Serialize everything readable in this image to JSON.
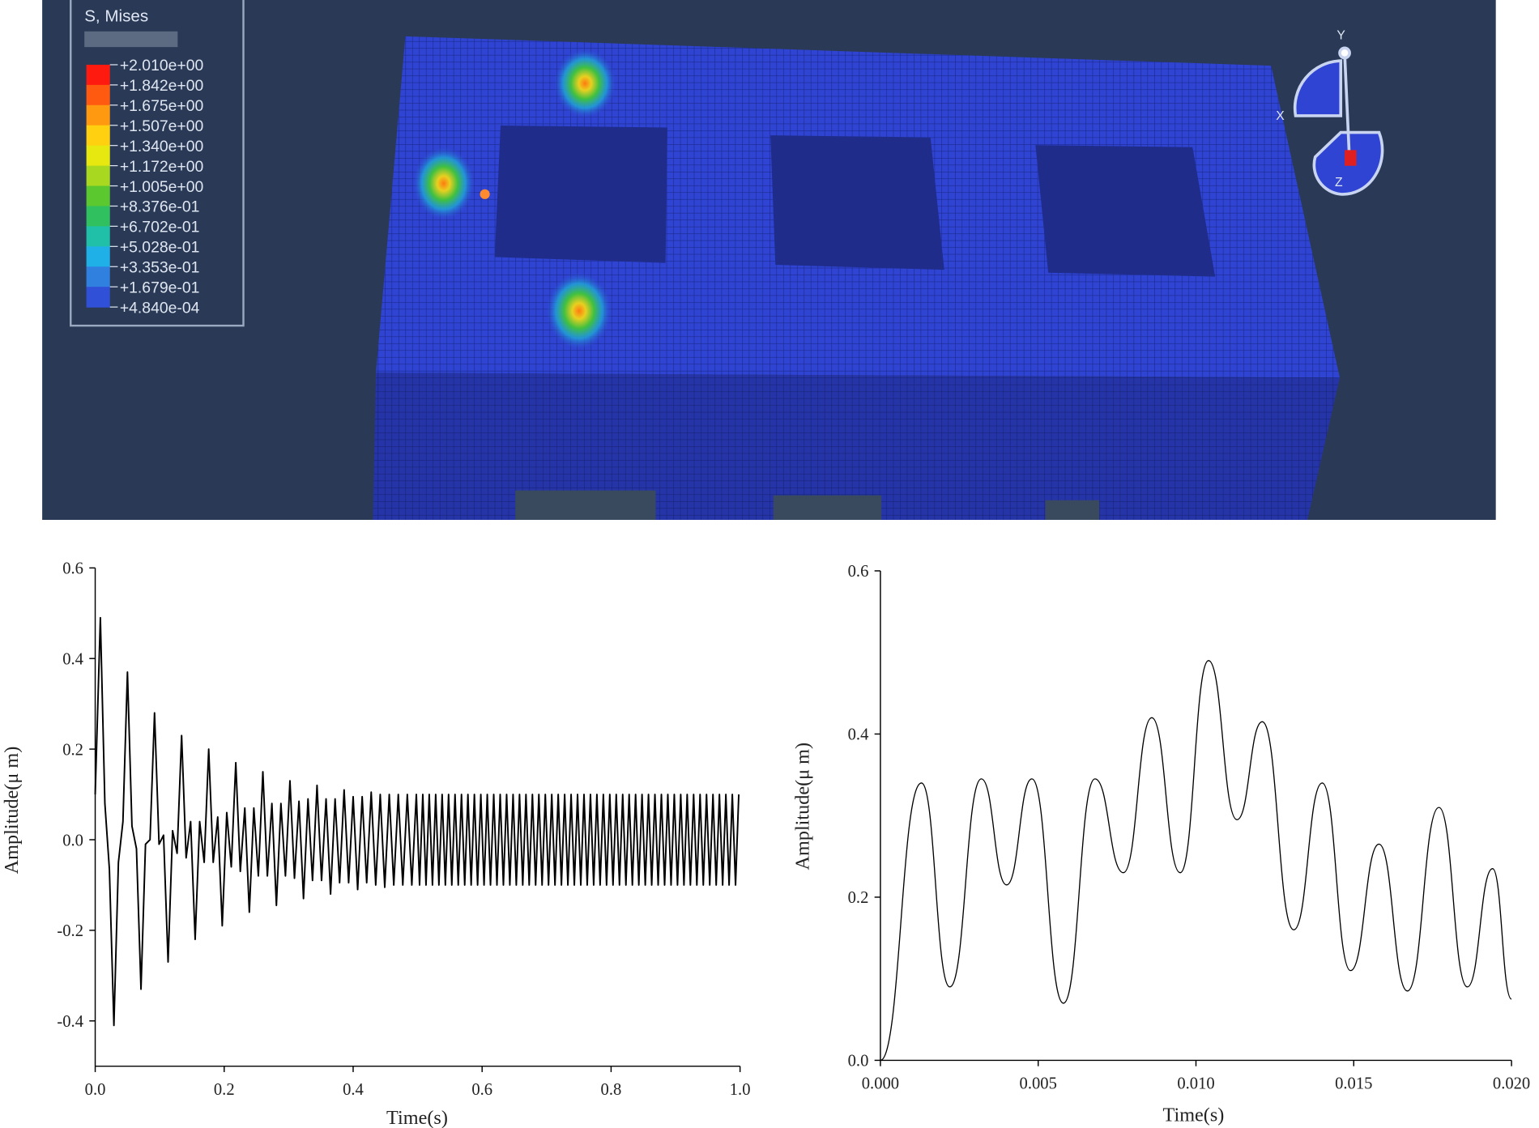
{
  "fea_view": {
    "title": "S, Mises",
    "legend_labels": [
      "+2.010e+00",
      "+1.842e+00",
      "+1.675e+00",
      "+1.507e+00",
      "+1.340e+00",
      "+1.172e+00",
      "+1.005e+00",
      "+8.376e-01",
      "+6.702e-01",
      "+5.028e-01",
      "+3.353e-01",
      "+1.679e-01",
      "+4.840e-04"
    ],
    "legend_colors": [
      "#ff1a10",
      "#ff5a10",
      "#ff9a10",
      "#ffd010",
      "#e6e810",
      "#a8d820",
      "#5cc830",
      "#30c060",
      "#20c0a8",
      "#20b0e8",
      "#3080e0",
      "#3050d8"
    ],
    "triad_labels": [
      "Y",
      "X",
      "Z"
    ]
  },
  "chart_data": [
    {
      "type": "line",
      "color": "#000000",
      "xlabel": "Time(s)",
      "ylabel": "Amplitude(μ m)",
      "xlim": [
        0,
        1
      ],
      "ylim": [
        -0.5,
        0.6
      ],
      "xticks": [
        {
          "value": 0,
          "label": "0.0"
        },
        0.2,
        0.4,
        0.6,
        0.8,
        {
          "value": 1,
          "label": "1.0"
        }
      ],
      "yticks": [
        -0.4,
        -0.2,
        {
          "value": 0,
          "label": "0.0"
        },
        0.2,
        0.4,
        0.6
      ],
      "x": [
        0,
        0.008,
        0.015,
        0.022,
        0.029,
        0.036,
        0.043,
        0.05,
        0.057,
        0.064,
        0.071,
        0.078,
        0.085,
        0.092,
        0.099,
        0.106,
        0.113,
        0.12,
        0.127,
        0.134,
        0.141,
        0.148,
        0.155,
        0.162,
        0.169,
        0.176,
        0.183,
        0.19,
        0.197,
        0.204,
        0.211,
        0.218,
        0.225,
        0.232,
        0.239,
        0.246,
        0.253,
        0.26,
        0.267,
        0.274,
        0.281,
        0.288,
        0.295,
        0.302,
        0.309,
        0.316,
        0.323,
        0.33,
        0.337,
        0.344,
        0.351,
        0.358,
        0.365,
        0.372,
        0.379,
        0.386,
        0.393,
        0.4,
        0.407,
        0.414,
        0.421,
        0.428,
        0.435,
        0.442,
        0.449,
        0.456,
        0.463,
        0.47,
        0.477,
        0.484,
        0.491,
        0.498,
        0.503,
        0.508,
        0.513,
        0.518,
        0.523,
        0.528,
        0.533,
        0.538,
        0.543,
        0.548,
        0.553,
        0.558,
        0.563,
        0.568,
        0.573,
        0.578,
        0.583,
        0.588,
        0.593,
        0.598,
        0.603,
        0.608,
        0.613,
        0.618,
        0.623,
        0.628,
        0.633,
        0.638,
        0.643,
        0.648,
        0.653,
        0.658,
        0.663,
        0.668,
        0.673,
        0.678,
        0.683,
        0.688,
        0.693,
        0.698,
        0.703,
        0.708,
        0.713,
        0.718,
        0.723,
        0.728,
        0.733,
        0.738,
        0.743,
        0.748,
        0.753,
        0.758,
        0.763,
        0.768,
        0.773,
        0.778,
        0.783,
        0.788,
        0.793,
        0.798,
        0.803,
        0.808,
        0.813,
        0.818,
        0.823,
        0.828,
        0.833,
        0.838,
        0.843,
        0.848,
        0.853,
        0.858,
        0.863,
        0.868,
        0.873,
        0.878,
        0.883,
        0.888,
        0.893,
        0.898,
        0.903,
        0.908,
        0.913,
        0.918,
        0.923,
        0.928,
        0.933,
        0.938,
        0.943,
        0.948,
        0.953,
        0.958,
        0.963,
        0.968,
        0.973,
        0.978,
        0.983,
        0.988,
        0.993,
        0.998
      ],
      "values": [
        0.1,
        0.49,
        0.08,
        -0.065,
        -0.41,
        -0.05,
        0.04,
        0.37,
        0.03,
        -0.02,
        -0.33,
        -0.01,
        0,
        0.28,
        -0.01,
        0.01,
        -0.27,
        0.02,
        -0.03,
        0.23,
        -0.04,
        0.04,
        -0.22,
        0.04,
        -0.05,
        0.2,
        -0.05,
        0.05,
        -0.19,
        0.06,
        -0.06,
        0.17,
        -0.07,
        0.07,
        -0.16,
        0.07,
        -0.08,
        0.15,
        -0.08,
        0.08,
        -0.145,
        0.08,
        -0.08,
        0.13,
        -0.085,
        0.085,
        -0.13,
        0.09,
        -0.09,
        0.12,
        -0.09,
        0.09,
        -0.12,
        0.09,
        -0.095,
        0.11,
        -0.095,
        0.095,
        -0.11,
        0.095,
        -0.095,
        0.105,
        -0.1,
        0.1,
        -0.105,
        0.1,
        -0.1,
        0.1,
        -0.1,
        0.1,
        -0.1,
        0.1,
        -0.1,
        0.1,
        -0.1,
        0.1,
        -0.1,
        0.1,
        -0.1,
        0.1,
        -0.1,
        0.1,
        -0.1,
        0.1,
        -0.1,
        0.1,
        -0.1,
        0.1,
        -0.1,
        0.1,
        -0.1,
        0.1,
        -0.1,
        0.1,
        -0.1,
        0.1,
        -0.1,
        0.1,
        -0.1,
        0.1,
        -0.1,
        0.1,
        -0.1,
        0.1,
        -0.1,
        0.1,
        -0.1,
        0.1,
        -0.1,
        0.1,
        -0.1,
        0.1,
        -0.1,
        0.1,
        -0.1,
        0.1,
        -0.1,
        0.1,
        -0.1,
        0.1,
        -0.1,
        0.1,
        -0.1,
        0.1,
        -0.1,
        0.1,
        -0.1,
        0.1,
        -0.1,
        0.1,
        -0.1,
        0.1,
        -0.1,
        0.1,
        -0.1,
        0.1,
        -0.1,
        0.1,
        -0.1,
        0.1,
        -0.1,
        0.1,
        -0.1,
        0.1,
        -0.1,
        0.1,
        -0.1,
        0.1,
        -0.1,
        0.1,
        -0.1,
        0.1,
        -0.1,
        0.1,
        -0.1,
        0.1,
        -0.1,
        0.1,
        -0.1,
        0.1,
        -0.1,
        0.1,
        -0.1,
        0.1,
        -0.1,
        0.1,
        -0.1,
        0.1,
        -0.1,
        0.1,
        -0.1,
        0.1
      ]
    },
    {
      "type": "line",
      "color": "#000000",
      "xlabel": "Time(s)",
      "ylabel": "Amplitude(μ m)",
      "xlim": [
        0,
        0.02
      ],
      "ylim": [
        0,
        0.6
      ],
      "xticks": [
        {
          "value": 0,
          "label": "0.000"
        },
        {
          "value": 0.005,
          "label": "0.005"
        },
        {
          "value": 0.01,
          "label": "0.010"
        },
        {
          "value": 0.015,
          "label": "0.015"
        },
        {
          "value": 0.02,
          "label": "0.020"
        }
      ],
      "yticks": [
        {
          "value": 0,
          "label": "0.0"
        },
        0.2,
        0.4,
        0.6
      ],
      "x": [
        0,
        0.0013,
        0.0022,
        0.0032,
        0.004,
        0.0048,
        0.0058,
        0.0068,
        0.0077,
        0.0086,
        0.0095,
        0.0104,
        0.0113,
        0.0121,
        0.0131,
        0.014,
        0.0149,
        0.0158,
        0.0167,
        0.0177,
        0.0186,
        0.0194,
        0.02
      ],
      "values": [
        0,
        0.34,
        0.09,
        0.345,
        0.215,
        0.345,
        0.07,
        0.345,
        0.23,
        0.42,
        0.23,
        0.49,
        0.295,
        0.415,
        0.16,
        0.34,
        0.11,
        0.265,
        0.085,
        0.31,
        0.09,
        0.235,
        0.075
      ]
    }
  ]
}
